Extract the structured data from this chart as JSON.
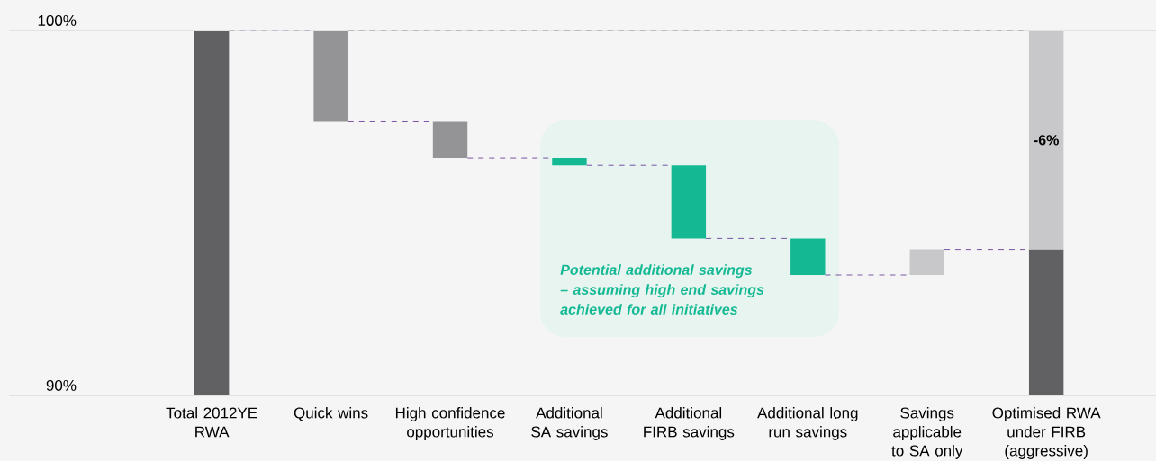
{
  "chart_data": {
    "type": "bar",
    "categories": [
      "Total 2012YE RWA",
      "Quick wins",
      "High confidence opportunities",
      "Additional SA savings",
      "Additional FIRB savings",
      "Additional long run savings",
      "Savings applicable to SA only",
      "Optimised RWA under FIRB (aggressive)"
    ],
    "series": [
      {
        "values": [
          10,
          -2.5,
          -1.0,
          -0.2,
          -2.0,
          -1.0,
          0.7,
          4.0
        ],
        "base": [
          90,
          100,
          97.5,
          96.5,
          96.3,
          94.3,
          93.3,
          90
        ],
        "colors": [
          "#616163",
          "#949496",
          "#949496",
          "#14b994",
          "#14b994",
          "#14b994",
          "#c8c8ca",
          "#616163"
        ]
      },
      {
        "values": [
          null,
          null,
          null,
          null,
          null,
          null,
          null,
          -6
        ],
        "base": [
          null,
          null,
          null,
          null,
          null,
          null,
          null,
          100
        ],
        "color": "#c8c8ca",
        "value_labels": [
          null,
          null,
          null,
          null,
          null,
          null,
          null,
          "-6%"
        ]
      }
    ],
    "ylim": [
      90,
      100
    ],
    "yticks": [
      {
        "value": 90,
        "label": "90%"
      },
      {
        "value": 100,
        "label": "100%"
      }
    ],
    "grid": "y",
    "annotations": [
      "Potential additional savings – assuming high end savings achieved for all initiatives"
    ]
  }
}
